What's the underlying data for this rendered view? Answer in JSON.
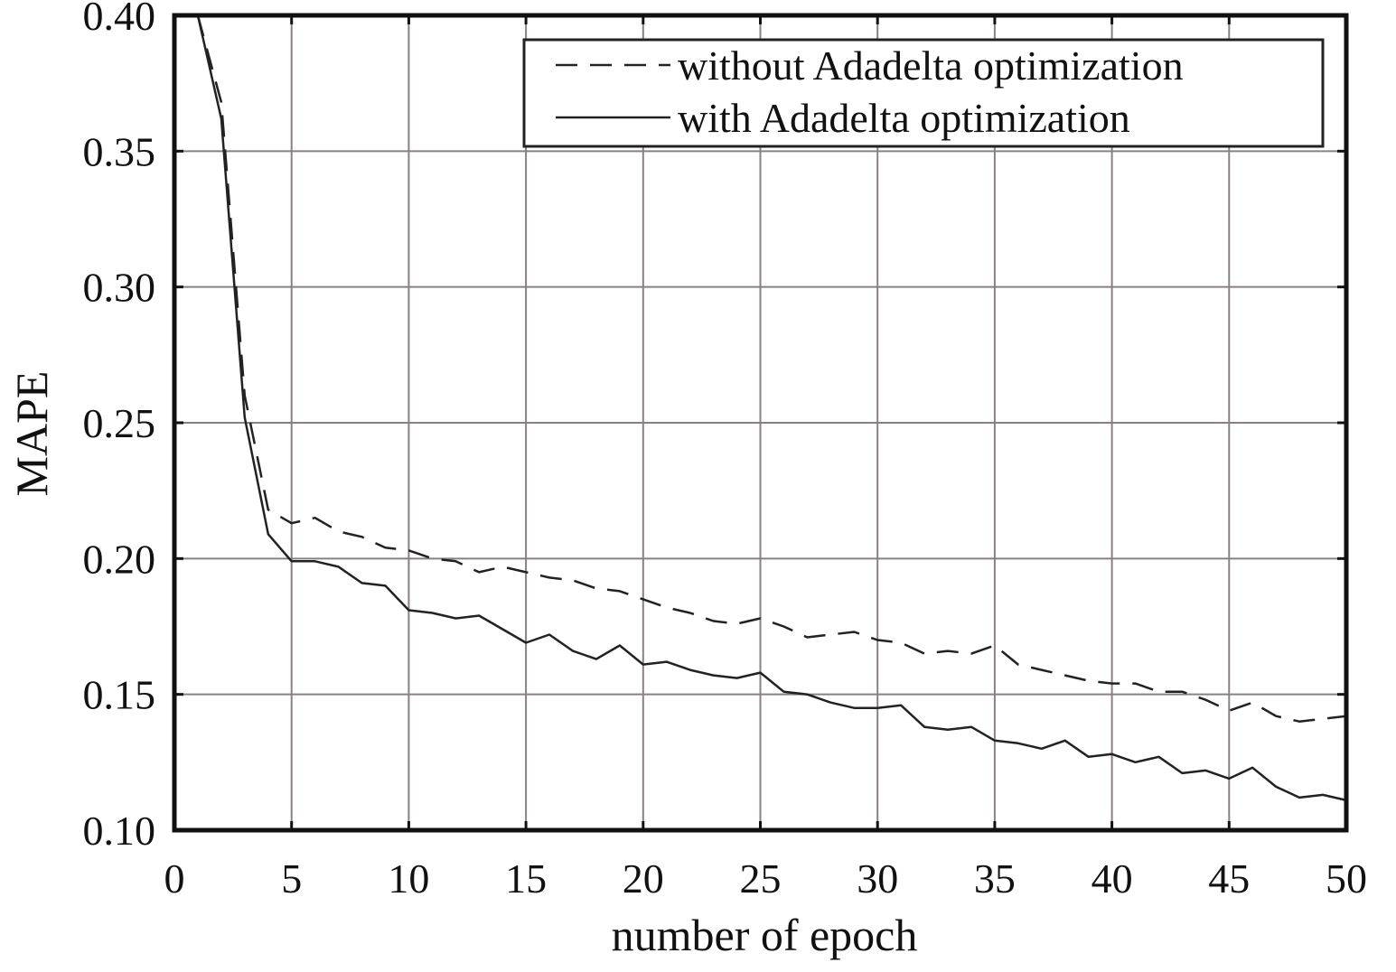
{
  "chart_data": {
    "type": "line",
    "xlabel": "number of epoch",
    "ylabel": "MAPE",
    "xlim": [
      0,
      50
    ],
    "ylim": [
      0.1,
      0.4
    ],
    "xticks": [
      "0",
      "5",
      "10",
      "15",
      "20",
      "25",
      "30",
      "35",
      "40",
      "45",
      "50"
    ],
    "yticks": [
      "0.10",
      "0.15",
      "0.20",
      "0.25",
      "0.30",
      "0.35",
      "0.40"
    ],
    "grid": true,
    "legend_position": "top-right",
    "x": [
      1,
      2,
      3,
      4,
      5,
      6,
      7,
      8,
      9,
      10,
      11,
      12,
      13,
      14,
      15,
      16,
      17,
      18,
      19,
      20,
      21,
      22,
      23,
      24,
      25,
      26,
      27,
      28,
      29,
      30,
      31,
      32,
      33,
      34,
      35,
      36,
      37,
      38,
      39,
      40,
      41,
      42,
      43,
      44,
      45,
      46,
      47,
      48,
      49,
      50
    ],
    "series": [
      {
        "name": "without Adadelta optimization",
        "style": "dashed",
        "values": [
          0.4,
          0.368,
          0.26,
          0.218,
          0.213,
          0.215,
          0.21,
          0.208,
          0.204,
          0.203,
          0.2,
          0.199,
          0.195,
          0.197,
          0.195,
          0.193,
          0.192,
          0.189,
          0.188,
          0.185,
          0.182,
          0.18,
          0.177,
          0.176,
          0.178,
          0.175,
          0.171,
          0.172,
          0.173,
          0.17,
          0.169,
          0.165,
          0.166,
          0.165,
          0.168,
          0.161,
          0.159,
          0.157,
          0.155,
          0.154,
          0.154,
          0.151,
          0.151,
          0.148,
          0.144,
          0.147,
          0.142,
          0.14,
          0.141,
          0.142
        ]
      },
      {
        "name": "with Adadelta optimization",
        "style": "solid",
        "values": [
          0.4,
          0.362,
          0.252,
          0.209,
          0.199,
          0.199,
          0.197,
          0.191,
          0.19,
          0.181,
          0.18,
          0.178,
          0.179,
          0.174,
          0.169,
          0.172,
          0.166,
          0.163,
          0.168,
          0.161,
          0.162,
          0.159,
          0.157,
          0.156,
          0.158,
          0.151,
          0.15,
          0.147,
          0.145,
          0.145,
          0.146,
          0.138,
          0.137,
          0.138,
          0.133,
          0.132,
          0.13,
          0.133,
          0.127,
          0.128,
          0.125,
          0.127,
          0.121,
          0.122,
          0.119,
          0.123,
          0.116,
          0.112,
          0.113,
          0.111
        ]
      }
    ]
  },
  "colors": {
    "line": "#222222",
    "grid": "#8a8080",
    "frame": "#111111",
    "background": "#ffffff"
  }
}
